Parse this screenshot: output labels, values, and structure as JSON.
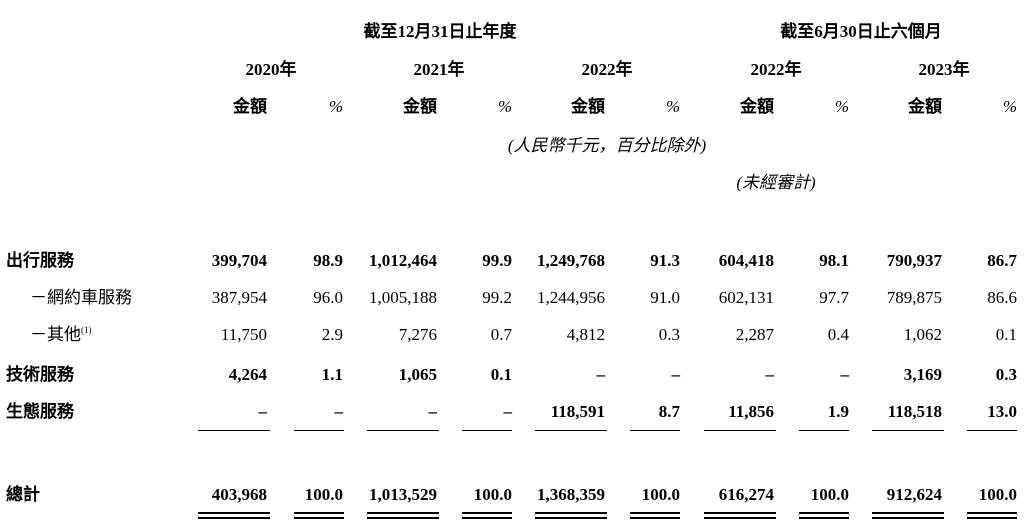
{
  "headers": {
    "period_year": "截至12月31日止年度",
    "period_half": "截至6月30日止六個月",
    "years": [
      "2020年",
      "2021年",
      "2022年",
      "2022年",
      "2023年"
    ],
    "amount": "金額",
    "pct": "%",
    "unit_note": "(人民幣千元，百分比除外)",
    "unaudited": "(未經審計)"
  },
  "rows": [
    {
      "label": "出行服務",
      "note": "",
      "values": [
        "399,704",
        "98.9",
        "1,012,464",
        "99.9",
        "1,249,768",
        "91.3",
        "604,418",
        "98.1",
        "790,937",
        "86.7"
      ]
    },
    {
      "label": "－網約車服務",
      "note": "",
      "values": [
        "387,954",
        "96.0",
        "1,005,188",
        "99.2",
        "1,244,956",
        "91.0",
        "602,131",
        "97.7",
        "789,875",
        "86.6"
      ]
    },
    {
      "label": "－其他",
      "note": "(1)",
      "values": [
        "11,750",
        "2.9",
        "7,276",
        "0.7",
        "4,812",
        "0.3",
        "2,287",
        "0.4",
        "1,062",
        "0.1"
      ]
    },
    {
      "label": "技術服務",
      "note": "",
      "values": [
        "4,264",
        "1.1",
        "1,065",
        "0.1",
        "–",
        "–",
        "–",
        "–",
        "3,169",
        "0.3"
      ]
    },
    {
      "label": "生態服務",
      "note": "",
      "values": [
        "–",
        "–",
        "–",
        "–",
        "118,591",
        "8.7",
        "11,856",
        "1.9",
        "118,518",
        "13.0"
      ]
    }
  ],
  "total": {
    "label": "總計",
    "values": [
      "403,968",
      "100.0",
      "1,013,529",
      "100.0",
      "1,368,359",
      "100.0",
      "616,274",
      "100.0",
      "912,624",
      "100.0"
    ]
  }
}
